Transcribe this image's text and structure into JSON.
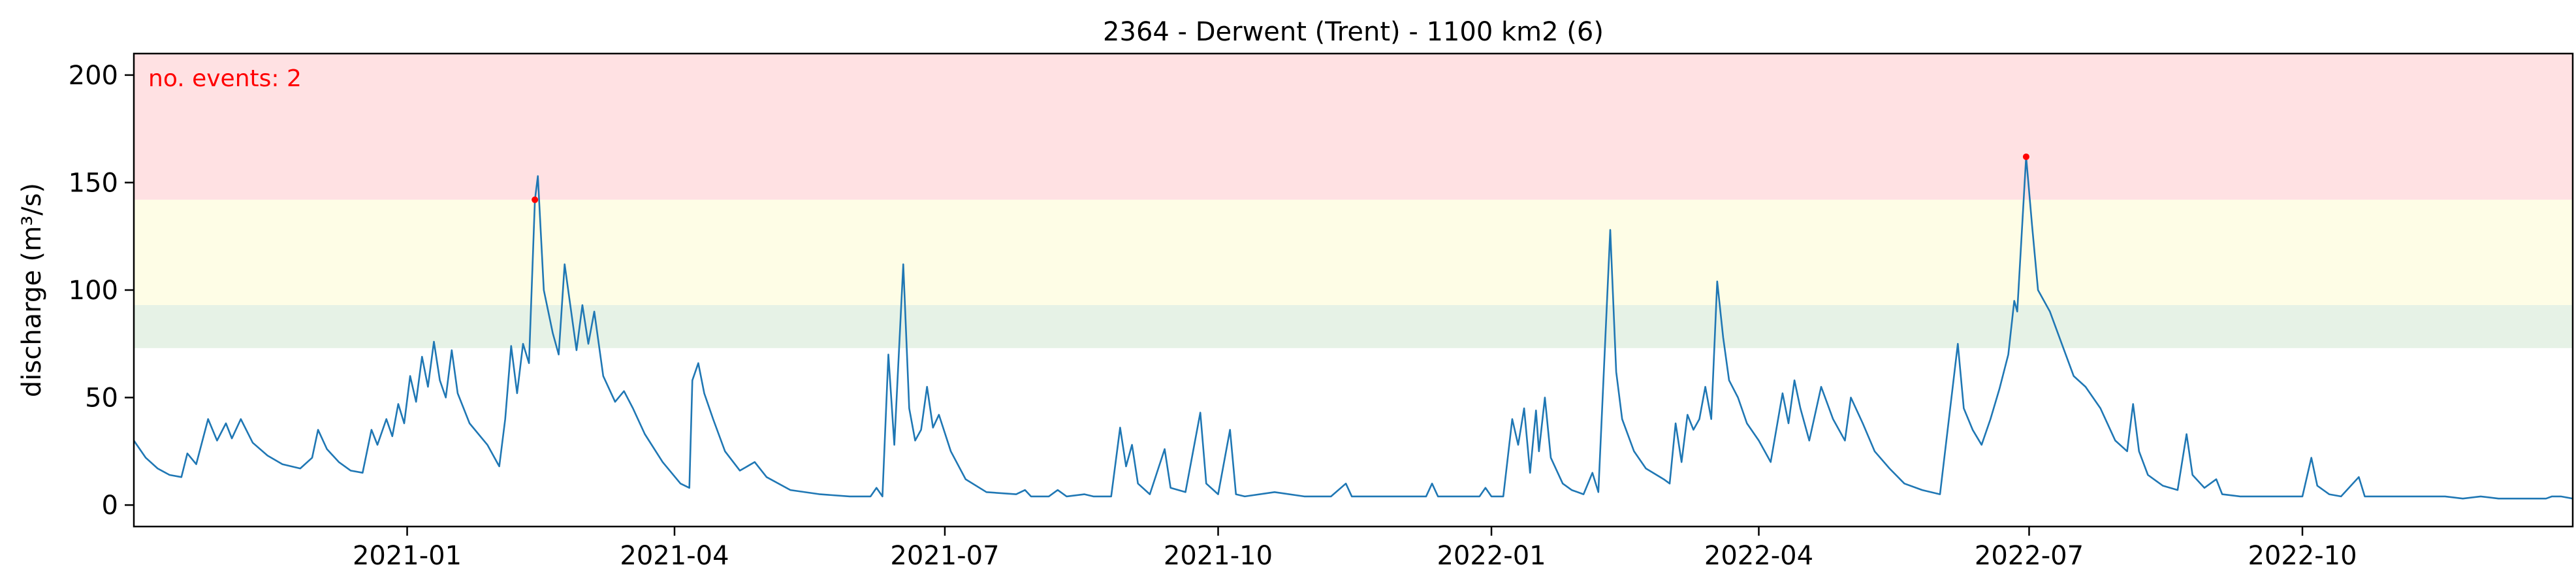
{
  "chart_data": {
    "type": "line",
    "title": "2364 - Derwent (Trent) - 1100 km2 (6)",
    "xlabel": "",
    "ylabel": "discharge (m³/s)",
    "xlim": [
      "2020-10-01",
      "2022-12-31"
    ],
    "ylim": [
      -10,
      210
    ],
    "yticks": [
      0,
      50,
      100,
      150,
      200
    ],
    "xticks": [
      {
        "date": "2021-01-01",
        "label": "2021-01"
      },
      {
        "date": "2021-04-01",
        "label": "2021-04"
      },
      {
        "date": "2021-07-01",
        "label": "2021-07"
      },
      {
        "date": "2021-10-01",
        "label": "2021-10"
      },
      {
        "date": "2022-01-01",
        "label": "2022-01"
      },
      {
        "date": "2022-04-01",
        "label": "2022-04"
      },
      {
        "date": "2022-07-01",
        "label": "2022-07"
      },
      {
        "date": "2022-10-01",
        "label": "2022-10"
      }
    ],
    "grid": false,
    "bands": [
      {
        "name": "red",
        "from": 142,
        "to": 210,
        "color": "#ffe1e3"
      },
      {
        "name": "yellow",
        "from": 93,
        "to": 142,
        "color": "#fefde6"
      },
      {
        "name": "green",
        "from": 73,
        "to": 93,
        "color": "#e6f2e6"
      }
    ],
    "annotation": "no. events: 2",
    "annotation_color": "#ff0000",
    "line_color": "#1f77b4",
    "event_color": "#ff0000",
    "series": [
      {
        "values": [
          [
            "2020-10-01",
            30
          ],
          [
            "2020-10-05",
            22
          ],
          [
            "2020-10-09",
            17
          ],
          [
            "2020-10-13",
            14
          ],
          [
            "2020-10-17",
            13
          ],
          [
            "2020-10-19",
            24
          ],
          [
            "2020-10-22",
            19
          ],
          [
            "2020-10-26",
            40
          ],
          [
            "2020-10-29",
            30
          ],
          [
            "2020-11-01",
            38
          ],
          [
            "2020-11-03",
            31
          ],
          [
            "2020-11-06",
            40
          ],
          [
            "2020-11-10",
            29
          ],
          [
            "2020-11-15",
            23
          ],
          [
            "2020-11-20",
            19
          ],
          [
            "2020-11-26",
            17
          ],
          [
            "2020-11-30",
            22
          ],
          [
            "2020-12-02",
            35
          ],
          [
            "2020-12-05",
            26
          ],
          [
            "2020-12-09",
            20
          ],
          [
            "2020-12-13",
            16
          ],
          [
            "2020-12-17",
            15
          ],
          [
            "2020-12-20",
            35
          ],
          [
            "2020-12-22",
            28
          ],
          [
            "2020-12-25",
            40
          ],
          [
            "2020-12-27",
            32
          ],
          [
            "2020-12-29",
            47
          ],
          [
            "2020-12-31",
            38
          ],
          [
            "2021-01-02",
            60
          ],
          [
            "2021-01-04",
            48
          ],
          [
            "2021-01-06",
            69
          ],
          [
            "2021-01-08",
            55
          ],
          [
            "2021-01-10",
            76
          ],
          [
            "2021-01-12",
            58
          ],
          [
            "2021-01-14",
            50
          ],
          [
            "2021-01-16",
            72
          ],
          [
            "2021-01-18",
            52
          ],
          [
            "2021-01-22",
            38
          ],
          [
            "2021-01-28",
            28
          ],
          [
            "2021-02-01",
            18
          ],
          [
            "2021-02-03",
            40
          ],
          [
            "2021-02-05",
            74
          ],
          [
            "2021-02-07",
            52
          ],
          [
            "2021-02-09",
            75
          ],
          [
            "2021-02-11",
            66
          ],
          [
            "2021-02-13",
            142
          ],
          [
            "2021-02-14",
            153
          ],
          [
            "2021-02-16",
            100
          ],
          [
            "2021-02-19",
            80
          ],
          [
            "2021-02-21",
            70
          ],
          [
            "2021-02-23",
            112
          ],
          [
            "2021-02-25",
            92
          ],
          [
            "2021-02-27",
            72
          ],
          [
            "2021-03-01",
            93
          ],
          [
            "2021-03-03",
            75
          ],
          [
            "2021-03-05",
            90
          ],
          [
            "2021-03-08",
            60
          ],
          [
            "2021-03-12",
            48
          ],
          [
            "2021-03-15",
            53
          ],
          [
            "2021-03-18",
            45
          ],
          [
            "2021-03-22",
            33
          ],
          [
            "2021-03-28",
            20
          ],
          [
            "2021-04-03",
            10
          ],
          [
            "2021-04-06",
            8
          ],
          [
            "2021-04-07",
            58
          ],
          [
            "2021-04-09",
            66
          ],
          [
            "2021-04-11",
            52
          ],
          [
            "2021-04-14",
            40
          ],
          [
            "2021-04-18",
            25
          ],
          [
            "2021-04-23",
            16
          ],
          [
            "2021-04-28",
            20
          ],
          [
            "2021-05-02",
            13
          ],
          [
            "2021-05-10",
            7
          ],
          [
            "2021-05-20",
            5
          ],
          [
            "2021-05-30",
            4
          ],
          [
            "2021-06-06",
            4
          ],
          [
            "2021-06-08",
            8
          ],
          [
            "2021-06-10",
            4
          ],
          [
            "2021-06-12",
            70
          ],
          [
            "2021-06-14",
            28
          ],
          [
            "2021-06-17",
            112
          ],
          [
            "2021-06-19",
            45
          ],
          [
            "2021-06-21",
            30
          ],
          [
            "2021-06-23",
            35
          ],
          [
            "2021-06-25",
            55
          ],
          [
            "2021-06-27",
            36
          ],
          [
            "2021-06-29",
            42
          ],
          [
            "2021-07-03",
            25
          ],
          [
            "2021-07-08",
            12
          ],
          [
            "2021-07-15",
            6
          ],
          [
            "2021-07-25",
            5
          ],
          [
            "2021-07-28",
            7
          ],
          [
            "2021-07-30",
            4
          ],
          [
            "2021-08-05",
            4
          ],
          [
            "2021-08-08",
            7
          ],
          [
            "2021-08-11",
            4
          ],
          [
            "2021-08-17",
            5
          ],
          [
            "2021-08-20",
            4
          ],
          [
            "2021-08-26",
            4
          ],
          [
            "2021-08-29",
            36
          ],
          [
            "2021-08-31",
            18
          ],
          [
            "2021-09-02",
            28
          ],
          [
            "2021-09-04",
            10
          ],
          [
            "2021-09-08",
            5
          ],
          [
            "2021-09-13",
            26
          ],
          [
            "2021-09-15",
            8
          ],
          [
            "2021-09-20",
            6
          ],
          [
            "2021-09-25",
            43
          ],
          [
            "2021-09-27",
            10
          ],
          [
            "2021-10-01",
            5
          ],
          [
            "2021-10-05",
            35
          ],
          [
            "2021-10-07",
            5
          ],
          [
            "2021-10-10",
            4
          ],
          [
            "2021-10-20",
            6
          ],
          [
            "2021-10-30",
            4
          ],
          [
            "2021-11-08",
            4
          ],
          [
            "2021-11-13",
            10
          ],
          [
            "2021-11-15",
            4
          ],
          [
            "2021-11-20",
            4
          ],
          [
            "2021-11-26",
            4
          ],
          [
            "2021-12-03",
            4
          ],
          [
            "2021-12-10",
            4
          ],
          [
            "2021-12-12",
            10
          ],
          [
            "2021-12-14",
            4
          ],
          [
            "2021-12-22",
            4
          ],
          [
            "2021-12-28",
            4
          ],
          [
            "2021-12-30",
            8
          ],
          [
            "2022-01-01",
            4
          ],
          [
            "2022-01-05",
            4
          ],
          [
            "2022-01-08",
            40
          ],
          [
            "2022-01-10",
            28
          ],
          [
            "2022-01-12",
            45
          ],
          [
            "2022-01-14",
            15
          ],
          [
            "2022-01-16",
            44
          ],
          [
            "2022-01-17",
            25
          ],
          [
            "2022-01-19",
            50
          ],
          [
            "2022-01-21",
            22
          ],
          [
            "2022-01-25",
            10
          ],
          [
            "2022-01-28",
            7
          ],
          [
            "2022-02-01",
            5
          ],
          [
            "2022-02-04",
            15
          ],
          [
            "2022-02-06",
            6
          ],
          [
            "2022-02-10",
            128
          ],
          [
            "2022-02-12",
            62
          ],
          [
            "2022-02-14",
            40
          ],
          [
            "2022-02-18",
            25
          ],
          [
            "2022-02-22",
            17
          ],
          [
            "2022-02-28",
            12
          ],
          [
            "2022-03-02",
            10
          ],
          [
            "2022-03-04",
            38
          ],
          [
            "2022-03-06",
            20
          ],
          [
            "2022-03-08",
            42
          ],
          [
            "2022-03-10",
            35
          ],
          [
            "2022-03-12",
            40
          ],
          [
            "2022-03-14",
            55
          ],
          [
            "2022-03-16",
            40
          ],
          [
            "2022-03-18",
            104
          ],
          [
            "2022-03-20",
            78
          ],
          [
            "2022-03-22",
            58
          ],
          [
            "2022-03-25",
            50
          ],
          [
            "2022-03-28",
            38
          ],
          [
            "2022-04-01",
            30
          ],
          [
            "2022-04-05",
            20
          ],
          [
            "2022-04-09",
            52
          ],
          [
            "2022-04-11",
            38
          ],
          [
            "2022-04-13",
            58
          ],
          [
            "2022-04-15",
            45
          ],
          [
            "2022-04-18",
            30
          ],
          [
            "2022-04-22",
            55
          ],
          [
            "2022-04-26",
            40
          ],
          [
            "2022-04-30",
            30
          ],
          [
            "2022-05-02",
            50
          ],
          [
            "2022-05-06",
            38
          ],
          [
            "2022-05-10",
            25
          ],
          [
            "2022-05-15",
            17
          ],
          [
            "2022-05-20",
            10
          ],
          [
            "2022-05-26",
            7
          ],
          [
            "2022-06-01",
            5
          ],
          [
            "2022-06-07",
            75
          ],
          [
            "2022-06-09",
            45
          ],
          [
            "2022-06-12",
            35
          ],
          [
            "2022-06-15",
            28
          ],
          [
            "2022-06-18",
            40
          ],
          [
            "2022-06-21",
            54
          ],
          [
            "2022-06-24",
            70
          ],
          [
            "2022-06-26",
            95
          ],
          [
            "2022-06-27",
            90
          ],
          [
            "2022-06-30",
            162
          ],
          [
            "2022-07-02",
            130
          ],
          [
            "2022-07-04",
            100
          ],
          [
            "2022-07-08",
            90
          ],
          [
            "2022-07-12",
            75
          ],
          [
            "2022-07-16",
            60
          ],
          [
            "2022-07-20",
            55
          ],
          [
            "2022-07-25",
            45
          ],
          [
            "2022-07-30",
            30
          ],
          [
            "2022-08-03",
            25
          ],
          [
            "2022-08-05",
            47
          ],
          [
            "2022-08-07",
            25
          ],
          [
            "2022-08-10",
            14
          ],
          [
            "2022-08-15",
            9
          ],
          [
            "2022-08-20",
            7
          ],
          [
            "2022-08-23",
            33
          ],
          [
            "2022-08-25",
            14
          ],
          [
            "2022-08-29",
            8
          ],
          [
            "2022-09-02",
            12
          ],
          [
            "2022-09-04",
            5
          ],
          [
            "2022-09-10",
            4
          ],
          [
            "2022-09-16",
            4
          ],
          [
            "2022-09-22",
            4
          ],
          [
            "2022-10-01",
            4
          ],
          [
            "2022-10-04",
            22
          ],
          [
            "2022-10-06",
            9
          ],
          [
            "2022-10-10",
            5
          ],
          [
            "2022-10-14",
            4
          ],
          [
            "2022-10-20",
            13
          ],
          [
            "2022-10-22",
            4
          ],
          [
            "2022-10-30",
            4
          ],
          [
            "2022-11-05",
            4
          ],
          [
            "2022-11-11",
            4
          ],
          [
            "2022-11-18",
            4
          ],
          [
            "2022-11-24",
            3
          ],
          [
            "2022-11-30",
            4
          ],
          [
            "2022-12-06",
            3
          ],
          [
            "2022-12-12",
            3
          ],
          [
            "2022-12-18",
            3
          ],
          [
            "2022-12-22",
            3
          ],
          [
            "2022-12-24",
            4
          ],
          [
            "2022-12-27",
            4
          ],
          [
            "2022-12-31",
            3
          ]
        ]
      }
    ],
    "events": [
      [
        "2021-02-13",
        142
      ],
      [
        "2022-06-30",
        162
      ]
    ]
  }
}
